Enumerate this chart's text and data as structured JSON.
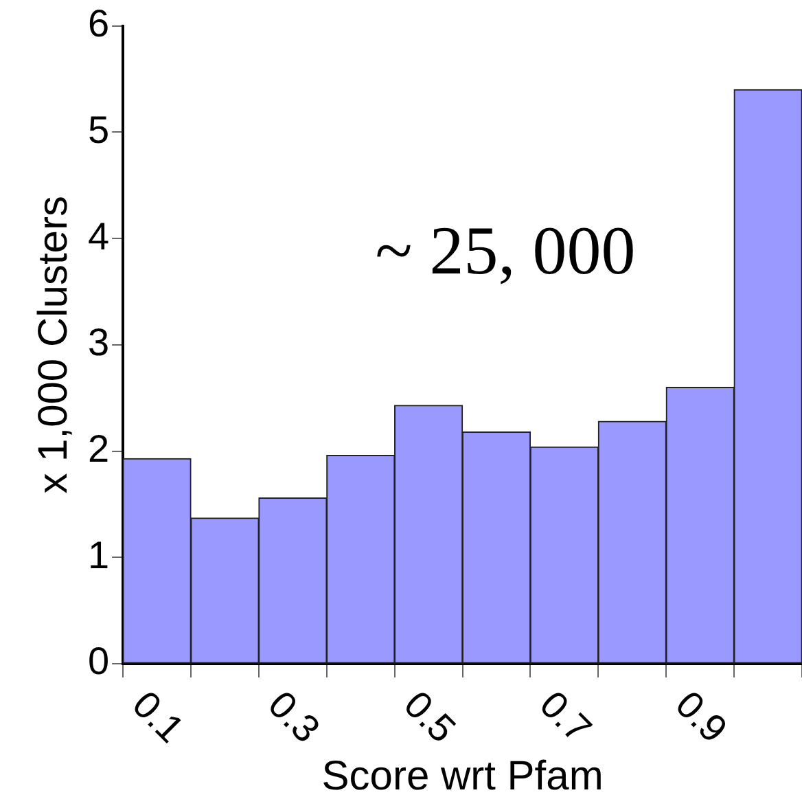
{
  "chart_data": {
    "type": "bar",
    "xlabel": "Score wrt Pfam",
    "ylabel": "x 1,000 Clusters",
    "annotations": [
      "~ 25, 000"
    ],
    "categories": [
      "0.1",
      null,
      "0.3",
      null,
      "0.5",
      null,
      "0.7",
      null,
      "0.9",
      null
    ],
    "values": [
      1.93,
      1.37,
      1.56,
      1.96,
      2.43,
      2.18,
      2.04,
      2.28,
      2.6,
      5.4
    ],
    "color": "#9999ff",
    "ylim": [
      0,
      6
    ],
    "yticks": [
      0,
      1,
      2,
      3,
      4,
      5,
      6
    ]
  }
}
